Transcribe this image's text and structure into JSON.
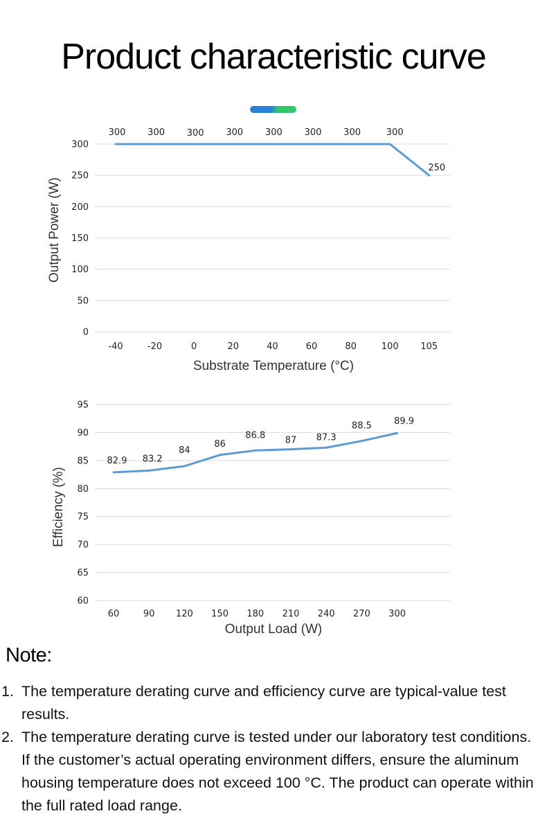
{
  "title": "Product characteristic curve",
  "chart_data": [
    {
      "type": "line",
      "x": [
        -40,
        -20,
        0,
        20,
        40,
        60,
        80,
        100,
        105
      ],
      "categories": [
        "-40",
        "-20",
        "0",
        "20",
        "40",
        "60",
        "80",
        "100",
        "105"
      ],
      "series": [
        {
          "values": [
            300,
            300,
            300,
            300,
            300,
            300,
            300,
            300,
            250
          ],
          "color": "#5b9bd5"
        }
      ],
      "data_labels": [
        "300",
        "300",
        "300",
        "300",
        "300",
        "300",
        "300",
        "300",
        "250"
      ],
      "xlabel": "Substrate Temperature (°C)",
      "ylabel": "Output Power (W)",
      "ylim": [
        0,
        300
      ],
      "yticks": [
        "0",
        "50",
        "100",
        "150",
        "200",
        "250",
        "300"
      ],
      "grid": true,
      "legend_colors": [
        "#2f7fd8",
        "#35c46a"
      ]
    },
    {
      "type": "line",
      "x": [
        60,
        90,
        120,
        150,
        180,
        210,
        240,
        270,
        300
      ],
      "categories": [
        "60",
        "90",
        "120",
        "150",
        "180",
        "210",
        "240",
        "270",
        "300"
      ],
      "series": [
        {
          "values": [
            82.9,
            83.2,
            84,
            86,
            86.8,
            87,
            87.3,
            88.5,
            89.9
          ],
          "color": "#5b9bd5"
        }
      ],
      "data_labels": [
        "82.9",
        "83.2",
        "84",
        "86",
        "86.8",
        "87",
        "87.3",
        "88.5",
        "89.9"
      ],
      "xlabel": "Output Load (W)",
      "ylabel": "Efficiency (%)",
      "ylim": [
        60,
        95
      ],
      "yticks": [
        "60",
        "65",
        "70",
        "75",
        "80",
        "85",
        "90",
        "95"
      ],
      "grid": true
    }
  ],
  "note": {
    "title": "Note:",
    "items": [
      {
        "num": "1.",
        "text": "The temperature derating curve and efficiency curve are typical-value test results."
      },
      {
        "num": "2.",
        "text": "The temperature derating curve is tested under our laboratory test conditions. If the customer’s actual operating environment differs, ensure the aluminum housing temperature does not exceed 100 °C. The product can operate within the full rated load range."
      }
    ]
  }
}
